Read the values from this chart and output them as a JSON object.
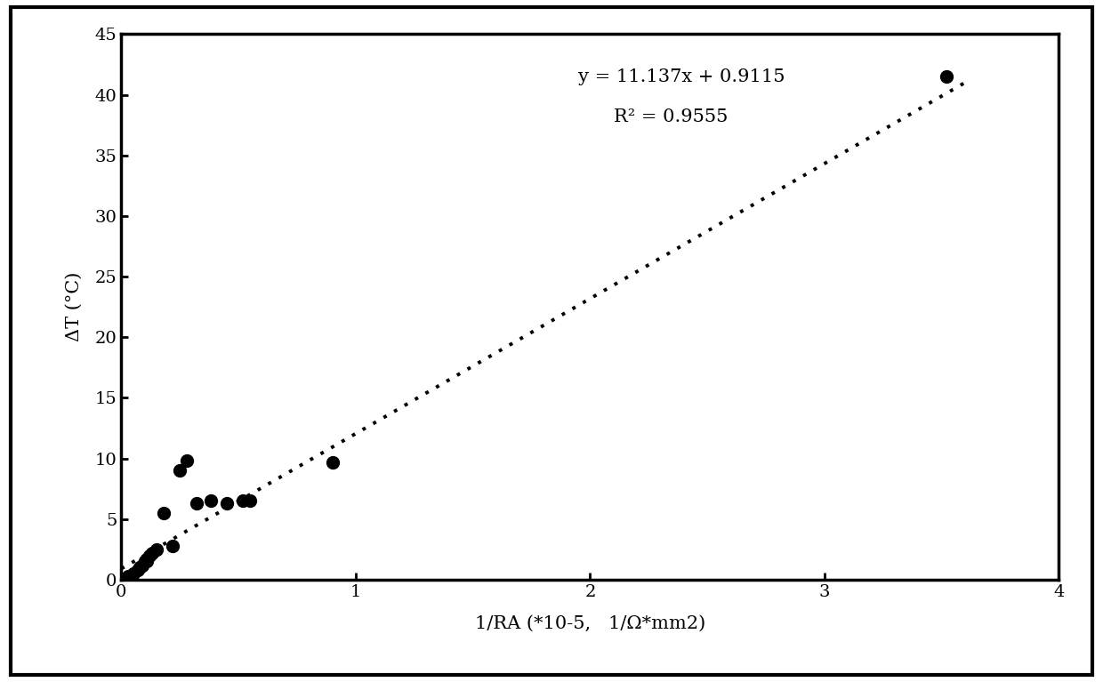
{
  "scatter_x": [
    0.03,
    0.05,
    0.07,
    0.08,
    0.09,
    0.1,
    0.11,
    0.12,
    0.13,
    0.15,
    0.18,
    0.22,
    0.25,
    0.28,
    0.32,
    0.38,
    0.45,
    0.52,
    0.55,
    0.9,
    3.52
  ],
  "scatter_y": [
    0.3,
    0.5,
    0.8,
    1.0,
    1.2,
    1.5,
    1.5,
    2.0,
    2.2,
    2.5,
    5.5,
    2.8,
    9.0,
    9.8,
    6.3,
    6.5,
    6.3,
    6.5,
    6.5,
    9.7,
    41.5
  ],
  "slope": 11.137,
  "intercept": 0.9115,
  "r_squared": 0.9555,
  "xlim": [
    0,
    4
  ],
  "ylim": [
    0,
    45
  ],
  "xticks": [
    0,
    1,
    2,
    3,
    4
  ],
  "yticks": [
    0,
    5,
    10,
    15,
    20,
    25,
    30,
    35,
    40,
    45
  ],
  "xlabel": "1/RA (*10-5,   1/Ω*mm2)",
  "ylabel": "ΔT (°C)",
  "eq_text": "y = 11.137x + 0.9115",
  "r2_text": "R² = 0.9555",
  "eq_x": 1.95,
  "eq_y": 41.5,
  "r2_x": 2.1,
  "r2_y": 38.2,
  "dot_color": "#000000",
  "bg_color": "#ffffff",
  "marker_size": 100,
  "trend_line_color": "#000000"
}
